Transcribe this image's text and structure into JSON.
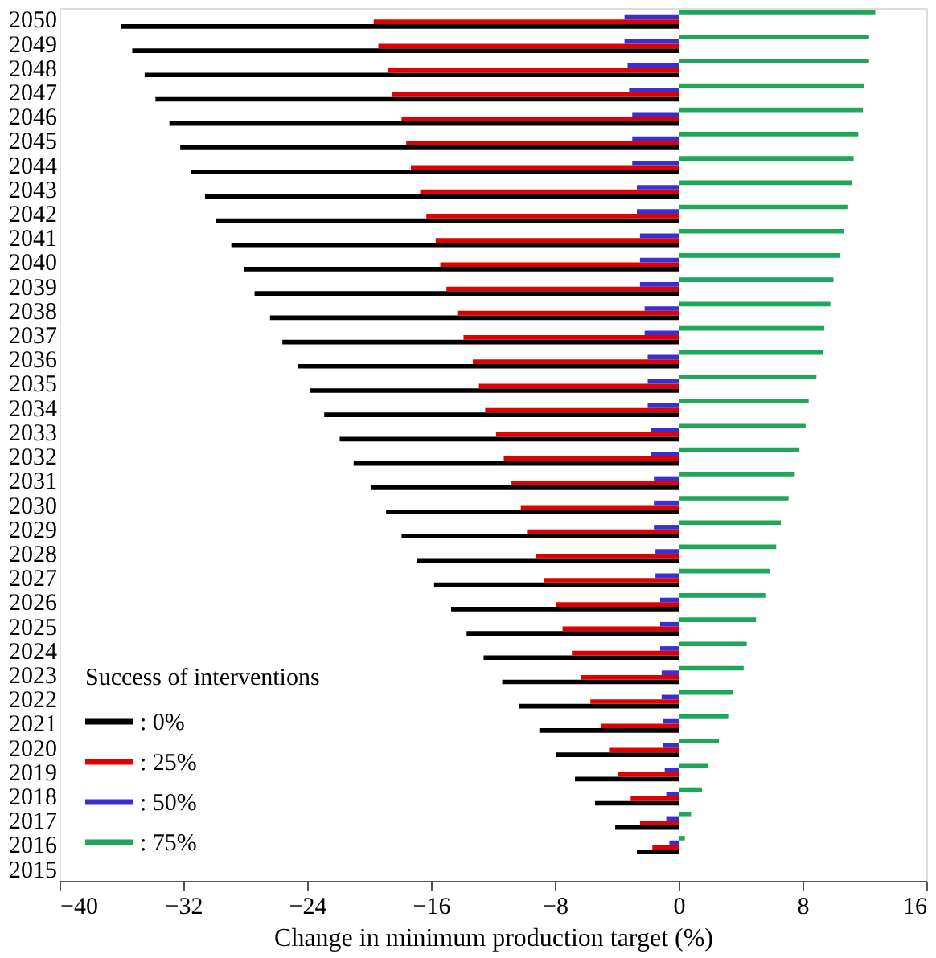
{
  "chart_data": {
    "type": "bar",
    "orientation": "horizontal",
    "xlabel": "Change in minimum production target (%)",
    "legend_title": "Success of interventions",
    "legend": "bottom left",
    "grid": false,
    "categories": [
      "2050",
      "2049",
      "2048",
      "2047",
      "2046",
      "2045",
      "2044",
      "2043",
      "2042",
      "2041",
      "2040",
      "2039",
      "2038",
      "2037",
      "2036",
      "2035",
      "2034",
      "2033",
      "2032",
      "2031",
      "2030",
      "2029",
      "2028",
      "2027",
      "2026",
      "2025",
      "2024",
      "2023",
      "2022",
      "2021",
      "2020",
      "2019",
      "2018",
      "2017",
      "2016",
      "2015"
    ],
    "xlim": [
      -40,
      16
    ],
    "xticks": [
      -40,
      -32,
      -24,
      -16,
      -8,
      0,
      8,
      16
    ],
    "series": [
      {
        "name": ": 0%",
        "color": "#000000",
        "values": [
          -36.0,
          -35.3,
          -34.5,
          -33.8,
          -32.9,
          -32.2,
          -31.5,
          -30.6,
          -29.9,
          -28.9,
          -28.1,
          -27.4,
          -26.4,
          -25.6,
          -24.6,
          -23.8,
          -22.9,
          -21.9,
          -21.0,
          -19.9,
          -18.9,
          -17.9,
          -16.9,
          -15.8,
          -14.7,
          -13.7,
          -12.6,
          -11.4,
          -10.3,
          -9.0,
          -7.9,
          -6.7,
          -5.4,
          -4.1,
          -2.7,
          0
        ]
      },
      {
        "name": ": 25%",
        "color": "#e00000",
        "values": [
          -19.7,
          -19.4,
          -18.8,
          -18.5,
          -17.9,
          -17.6,
          -17.3,
          -16.7,
          -16.3,
          -15.7,
          -15.4,
          -15.0,
          -14.3,
          -13.9,
          -13.3,
          -12.9,
          -12.5,
          -11.8,
          -11.3,
          -10.8,
          -10.2,
          -9.8,
          -9.2,
          -8.7,
          -7.9,
          -7.5,
          -6.9,
          -6.3,
          -5.7,
          -5.0,
          -4.5,
          -3.9,
          -3.1,
          -2.5,
          -1.7,
          0
        ]
      },
      {
        "name": ": 50%",
        "color": "#3a2fd0",
        "values": [
          -3.5,
          -3.5,
          -3.3,
          -3.2,
          -3.0,
          -3.0,
          -3.0,
          -2.7,
          -2.7,
          -2.5,
          -2.5,
          -2.5,
          -2.2,
          -2.2,
          -2.0,
          -2.0,
          -2.0,
          -1.8,
          -1.8,
          -1.6,
          -1.6,
          -1.6,
          -1.5,
          -1.5,
          -1.2,
          -1.2,
          -1.2,
          -1.1,
          -1.1,
          -1.0,
          -1.0,
          -0.9,
          -0.8,
          -0.8,
          -0.6,
          0
        ]
      },
      {
        "name": ": 75%",
        "color": "#1ea65a",
        "values": [
          12.7,
          12.3,
          12.3,
          12.0,
          11.9,
          11.6,
          11.3,
          11.2,
          10.9,
          10.7,
          10.4,
          10.0,
          9.8,
          9.4,
          9.3,
          8.9,
          8.4,
          8.2,
          7.8,
          7.5,
          7.1,
          6.6,
          6.3,
          5.9,
          5.6,
          5.0,
          4.4,
          4.2,
          3.5,
          3.2,
          2.6,
          1.9,
          1.5,
          0.8,
          0.4,
          0
        ]
      }
    ]
  }
}
